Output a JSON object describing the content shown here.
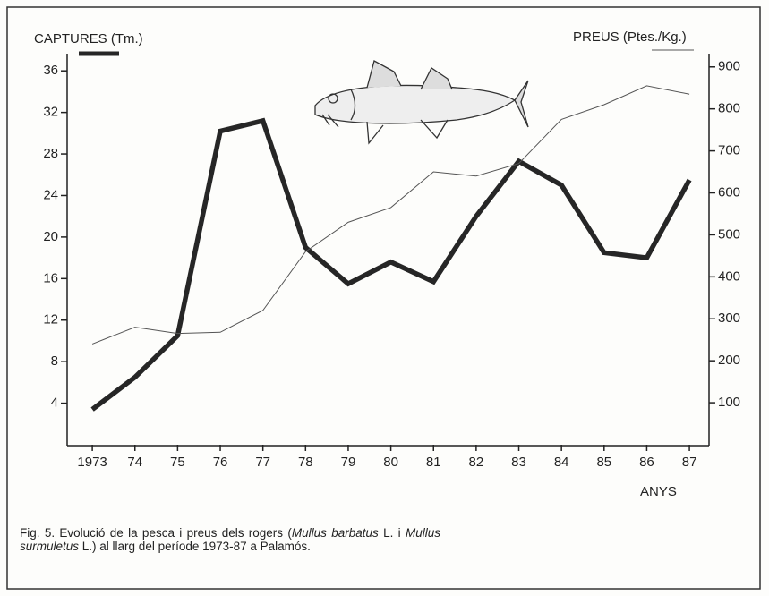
{
  "chart_data": {
    "type": "line",
    "x": [
      1973,
      1974,
      1975,
      1976,
      1977,
      1978,
      1979,
      1980,
      1981,
      1982,
      1983,
      1984,
      1985,
      1986,
      1987
    ],
    "xlim": [
      1972.41,
      1987.46
    ],
    "xticks": [
      {
        "value": 1973,
        "label": "1973"
      },
      {
        "value": 1974,
        "label": "74"
      },
      {
        "value": 1975,
        "label": "75"
      },
      {
        "value": 1976,
        "label": "76"
      },
      {
        "value": 1977,
        "label": "77"
      },
      {
        "value": 1978,
        "label": "78"
      },
      {
        "value": 1979,
        "label": "79"
      },
      {
        "value": 1980,
        "label": "80"
      },
      {
        "value": 1981,
        "label": "81"
      },
      {
        "value": 1982,
        "label": "82"
      },
      {
        "value": 1983,
        "label": "83"
      },
      {
        "value": 1984,
        "label": "84"
      },
      {
        "value": 1985,
        "label": "85"
      },
      {
        "value": 1986,
        "label": "86"
      },
      {
        "value": 1987,
        "label": "87"
      }
    ],
    "x_label": "ANYS",
    "ylim": [
      0,
      38
    ],
    "yticks": [
      4,
      8,
      12,
      16,
      20,
      24,
      28,
      32,
      36
    ],
    "y2lim": [
      0,
      940
    ],
    "y2ticks": [
      100,
      200,
      300,
      400,
      500,
      600,
      700,
      800,
      900
    ],
    "series": [
      {
        "name": "CAPTURES (Tm.)",
        "color": "#262626",
        "values": [
          3.4,
          6.5,
          10.5,
          30.2,
          31.2,
          19,
          15.5,
          17.6,
          15.7,
          22,
          27.3,
          25,
          18.5,
          18,
          25.5
        ]
      },
      {
        "name": "PREUS (Ptes./Kg.)",
        "color": "#555555",
        "axis": "y2",
        "values": [
          240,
          280,
          265,
          268,
          320,
          460,
          530,
          565,
          650,
          640,
          670,
          775,
          810,
          855,
          835
        ]
      }
    ],
    "caption": [
      "Fig. 5. Evolució de la pesca i preus dels rogers (",
      "Mullus barbatus",
      " L. i ",
      "Mullus surmuletus",
      " L.) al llarg del període 1973-87 a Palamós."
    ]
  }
}
